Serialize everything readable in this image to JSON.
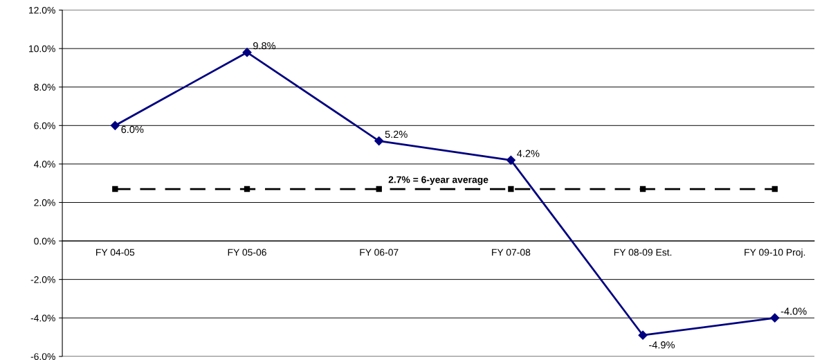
{
  "chart_data": {
    "type": "line",
    "categories": [
      "FY 04-05",
      "FY 05-06",
      "FY 06-07",
      "FY 07-08",
      "FY 08-09 Est.",
      "FY 09-10 Proj."
    ],
    "series": [
      {
        "color": "#000080",
        "values": [
          6.0,
          9.8,
          5.2,
          4.2,
          -4.9,
          -4.0
        ],
        "marker": "diamond",
        "line_style": "solid",
        "value_labels": [
          "6.0%",
          "9.8%",
          "5.2%",
          "4.2%",
          "-4.9%",
          "-4.0%"
        ]
      },
      {
        "color": "#000000",
        "values": [
          2.7,
          2.7,
          2.7,
          2.7,
          2.7,
          2.7
        ],
        "marker": "square",
        "line_style": "dashed"
      }
    ],
    "annotations": [
      "2.7% = 6-year average"
    ],
    "ylim": [
      -6,
      12
    ],
    "yticks": [
      {
        "value": -6,
        "label": "-6.0%"
      },
      {
        "value": -4,
        "label": "-4.0%"
      },
      {
        "value": -2,
        "label": "-2.0%"
      },
      {
        "value": 0,
        "label": "0.0%"
      },
      {
        "value": 2,
        "label": "2.0%"
      },
      {
        "value": 4,
        "label": "4.0%"
      },
      {
        "value": 6,
        "label": "6.0%"
      },
      {
        "value": 8,
        "label": "8.0%"
      },
      {
        "value": 10,
        "label": "10.0%"
      },
      {
        "value": 12,
        "label": "12.0%"
      }
    ],
    "grid": "y"
  }
}
